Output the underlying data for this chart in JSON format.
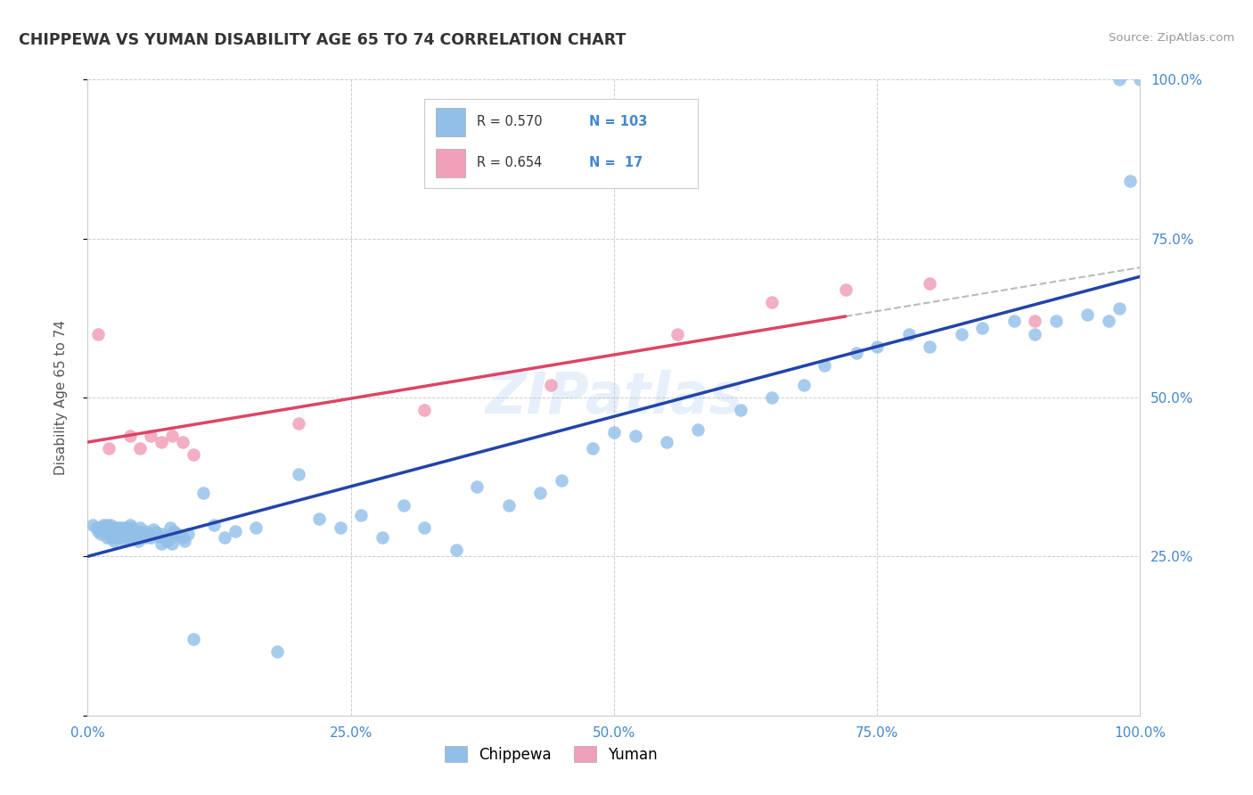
{
  "title": "CHIPPEWA VS YUMAN DISABILITY AGE 65 TO 74 CORRELATION CHART",
  "source": "Source: ZipAtlas.com",
  "ylabel": "Disability Age 65 to 74",
  "xlim": [
    0.0,
    1.0
  ],
  "ylim": [
    0.0,
    1.0
  ],
  "xticks": [
    0.0,
    0.25,
    0.5,
    0.75,
    1.0
  ],
  "yticks": [
    0.0,
    0.25,
    0.5,
    0.75,
    1.0
  ],
  "xticklabels": [
    "0.0%",
    "25.0%",
    "50.0%",
    "75.0%",
    "100.0%"
  ],
  "right_yticklabels": [
    "",
    "25.0%",
    "50.0%",
    "75.0%",
    "100.0%"
  ],
  "chippewa_color": "#91bfe8",
  "yuman_color": "#f0a0b8",
  "line_blue": "#2244aa",
  "line_pink": "#dd4466",
  "line_dashed_color": "#bbbbbb",
  "bg_color": "#ffffff",
  "grid_color": "#cccccc",
  "R_chippewa": "0.570",
  "N_chippewa": "103",
  "R_yuman": "0.654",
  "N_yuman": "17",
  "legend_label_chippewa": "Chippewa",
  "legend_label_yuman": "Yuman",
  "watermark": "ZIPatlas",
  "chippewa_x": [
    0.005,
    0.008,
    0.01,
    0.012,
    0.012,
    0.015,
    0.015,
    0.018,
    0.018,
    0.018,
    0.02,
    0.02,
    0.022,
    0.022,
    0.022,
    0.025,
    0.025,
    0.025,
    0.028,
    0.028,
    0.03,
    0.03,
    0.03,
    0.032,
    0.032,
    0.035,
    0.035,
    0.035,
    0.038,
    0.038,
    0.04,
    0.04,
    0.04,
    0.042,
    0.042,
    0.045,
    0.045,
    0.048,
    0.048,
    0.05,
    0.05,
    0.052,
    0.055,
    0.055,
    0.058,
    0.06,
    0.062,
    0.065,
    0.068,
    0.07,
    0.07,
    0.075,
    0.078,
    0.08,
    0.08,
    0.082,
    0.085,
    0.09,
    0.092,
    0.095,
    0.1,
    0.11,
    0.12,
    0.13,
    0.14,
    0.16,
    0.18,
    0.2,
    0.22,
    0.24,
    0.26,
    0.28,
    0.3,
    0.32,
    0.35,
    0.37,
    0.4,
    0.43,
    0.45,
    0.48,
    0.5,
    0.52,
    0.55,
    0.58,
    0.62,
    0.65,
    0.68,
    0.7,
    0.73,
    0.75,
    0.78,
    0.8,
    0.83,
    0.85,
    0.88,
    0.9,
    0.92,
    0.95,
    0.97,
    0.98,
    0.98,
    0.99,
    1.0
  ],
  "chippewa_y": [
    0.3,
    0.295,
    0.29,
    0.285,
    0.295,
    0.295,
    0.3,
    0.28,
    0.29,
    0.3,
    0.285,
    0.295,
    0.28,
    0.29,
    0.3,
    0.275,
    0.285,
    0.295,
    0.28,
    0.295,
    0.285,
    0.295,
    0.28,
    0.285,
    0.295,
    0.275,
    0.285,
    0.295,
    0.28,
    0.295,
    0.28,
    0.29,
    0.3,
    0.285,
    0.295,
    0.28,
    0.29,
    0.275,
    0.29,
    0.285,
    0.295,
    0.285,
    0.28,
    0.29,
    0.285,
    0.28,
    0.292,
    0.288,
    0.282,
    0.27,
    0.285,
    0.275,
    0.295,
    0.28,
    0.27,
    0.29,
    0.285,
    0.28,
    0.275,
    0.285,
    0.12,
    0.35,
    0.3,
    0.28,
    0.29,
    0.295,
    0.1,
    0.38,
    0.31,
    0.295,
    0.315,
    0.28,
    0.33,
    0.295,
    0.26,
    0.36,
    0.33,
    0.35,
    0.37,
    0.42,
    0.445,
    0.44,
    0.43,
    0.45,
    0.48,
    0.5,
    0.52,
    0.55,
    0.57,
    0.58,
    0.6,
    0.58,
    0.6,
    0.61,
    0.62,
    0.6,
    0.62,
    0.63,
    0.62,
    0.64,
    1.0,
    0.84,
    1.0
  ],
  "yuman_x": [
    0.01,
    0.02,
    0.04,
    0.05,
    0.06,
    0.07,
    0.08,
    0.09,
    0.1,
    0.2,
    0.32,
    0.44,
    0.56,
    0.65,
    0.72,
    0.8,
    0.9
  ],
  "yuman_y": [
    0.6,
    0.42,
    0.44,
    0.42,
    0.44,
    0.43,
    0.44,
    0.43,
    0.41,
    0.46,
    0.48,
    0.52,
    0.6,
    0.65,
    0.67,
    0.68,
    0.62
  ]
}
